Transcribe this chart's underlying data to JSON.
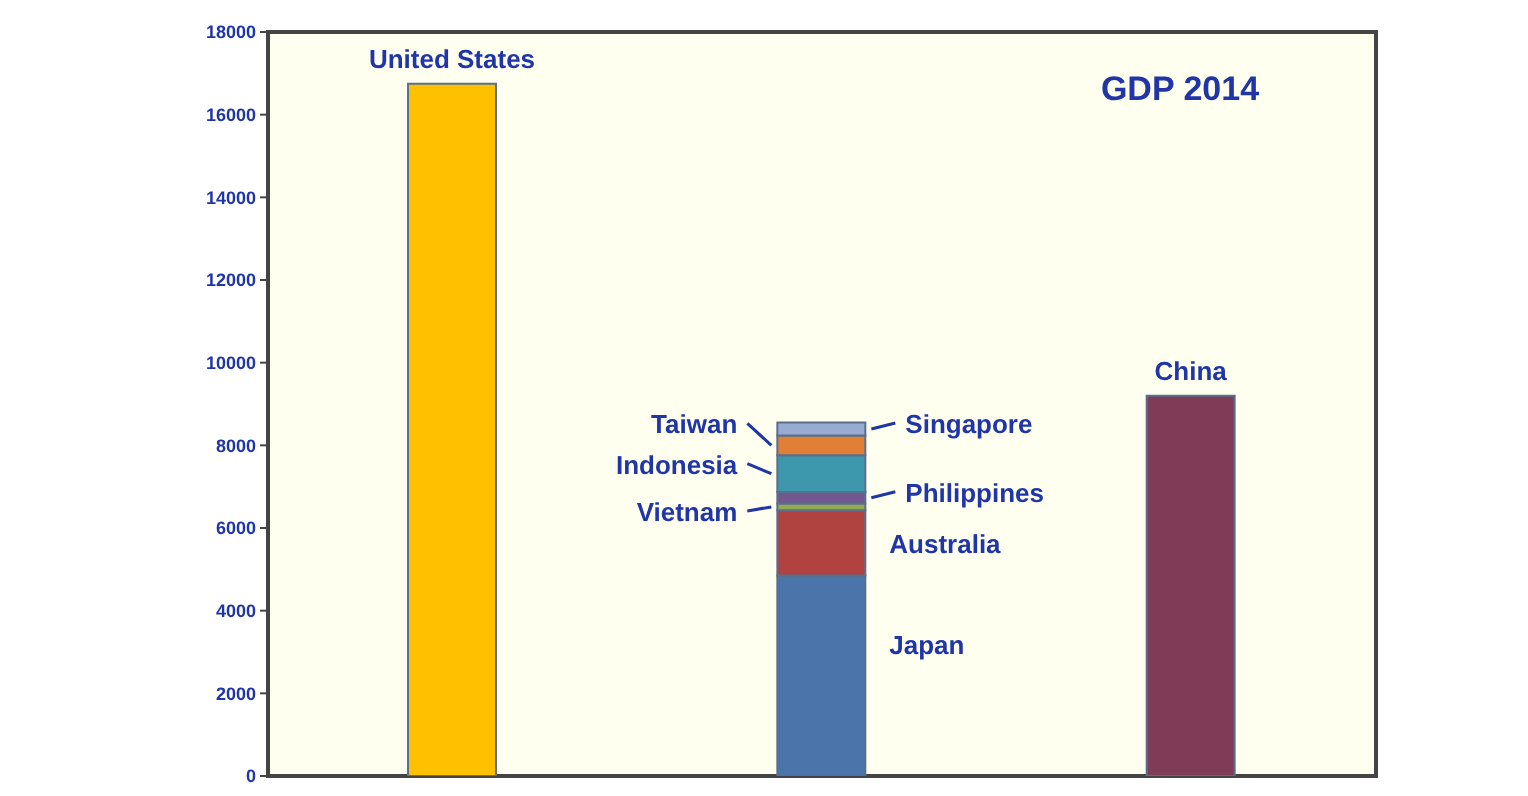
{
  "chart_data": {
    "type": "bar",
    "title": "GDP 2014",
    "categories": [
      null,
      null,
      null
    ],
    "stacked": true,
    "ylim": [
      0,
      18000
    ],
    "yticks": [
      0,
      2000,
      4000,
      6000,
      8000,
      10000,
      12000,
      14000,
      16000,
      18000
    ],
    "tick_labels": "y",
    "series": [
      {
        "name": "United States",
        "color": "#ffc000",
        "values": [
          16750,
          null,
          null
        ]
      },
      {
        "name": "Japan",
        "color": "#4a74aa",
        "values": [
          null,
          4850,
          null
        ]
      },
      {
        "name": "Australia",
        "color": "#b0433f",
        "values": [
          null,
          1580,
          null
        ]
      },
      {
        "name": "Vietnam",
        "color": "#93ab50",
        "values": [
          null,
          160,
          null
        ]
      },
      {
        "name": "Philippines",
        "color": "#71598f",
        "values": [
          null,
          280,
          null
        ]
      },
      {
        "name": "Indonesia",
        "color": "#3d98ae",
        "values": [
          null,
          890,
          null
        ]
      },
      {
        "name": "Taiwan",
        "color": "#e07f35",
        "values": [
          null,
          480,
          null
        ]
      },
      {
        "name": "Singapore",
        "color": "#96acd3",
        "values": [
          null,
          310,
          null
        ]
      },
      {
        "name": "China",
        "color": "#7e3c56",
        "values": [
          null,
          null,
          9200
        ]
      }
    ]
  }
}
